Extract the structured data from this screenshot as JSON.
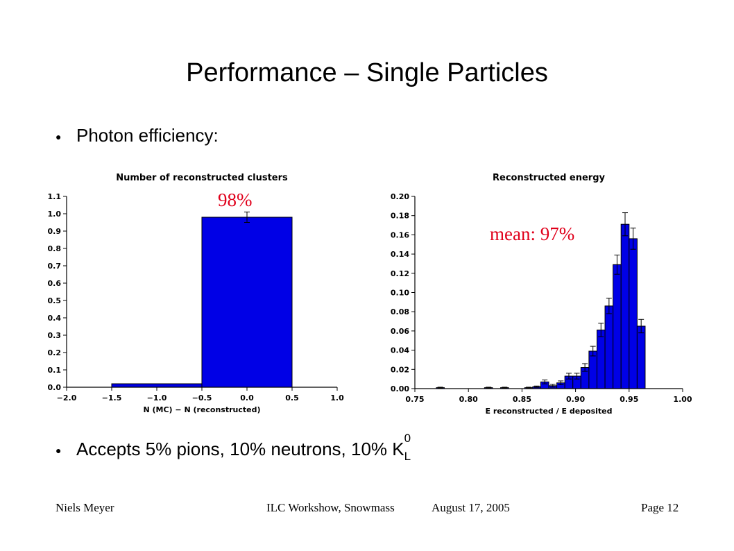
{
  "slide": {
    "title": "Performance – Single Particles",
    "bullet1": "Photon efficiency:",
    "bullet2_text": "Accepts 5% pions, 10% neutrons, 10% K",
    "bullet2_sup": "0",
    "bullet2_sub": "L",
    "annotation_left": "98%",
    "annotation_right": "mean: 97%"
  },
  "footer": {
    "author": "Niels Meyer",
    "event": "ILC Workshow, Snowmass",
    "date": "August 17, 2005",
    "page": "Page 12"
  },
  "colors": {
    "bar": "#0000e6",
    "annotation": "#e0001b"
  },
  "chart_data": [
    {
      "type": "bar",
      "title": "Number of reconstructed clusters",
      "xlabel": "N (MC) − N (reconstructed)",
      "ylabel": "",
      "xlim": [
        -2.0,
        1.0
      ],
      "ylim": [
        0.0,
        1.1
      ],
      "xticks": [
        "−2.0",
        "−1.5",
        "−1.0",
        "−0.5",
        "0.0",
        "0.5",
        "1.0"
      ],
      "yticks": [
        "0.0",
        "0.1",
        "0.2",
        "0.3",
        "0.4",
        "0.5",
        "0.6",
        "0.7",
        "0.8",
        "0.9",
        "1.0",
        "1.1"
      ],
      "bins": [
        {
          "x0": -1.5,
          "x1": -0.5,
          "value": 0.02,
          "err": 0.0
        },
        {
          "x0": -0.5,
          "x1": 0.5,
          "value": 0.98,
          "err": 0.03
        }
      ],
      "grid": false
    },
    {
      "type": "bar",
      "title": "Reconstructed energy",
      "xlabel": "E reconstructed / E deposited",
      "ylabel": "",
      "xlim": [
        0.75,
        1.0
      ],
      "ylim": [
        0.0,
        0.2
      ],
      "xticks": [
        "0.75",
        "0.80",
        "0.85",
        "0.90",
        "0.95",
        "1.00"
      ],
      "yticks": [
        "0.00",
        "0.02",
        "0.04",
        "0.06",
        "0.08",
        "0.10",
        "0.12",
        "0.14",
        "0.16",
        "0.18",
        "0.20"
      ],
      "bin_width": 0.0075,
      "bins": [
        {
          "x0": 0.77,
          "value": 0.001,
          "err": 0.0005
        },
        {
          "x0": 0.815,
          "value": 0.001,
          "err": 0.0005
        },
        {
          "x0": 0.83,
          "value": 0.001,
          "err": 0.0005
        },
        {
          "x0": 0.8525,
          "value": 0.001,
          "err": 0.0005
        },
        {
          "x0": 0.86,
          "value": 0.002,
          "err": 0.0007
        },
        {
          "x0": 0.8675,
          "value": 0.007,
          "err": 0.002
        },
        {
          "x0": 0.875,
          "value": 0.003,
          "err": 0.0015
        },
        {
          "x0": 0.8825,
          "value": 0.006,
          "err": 0.002
        },
        {
          "x0": 0.89,
          "value": 0.013,
          "err": 0.003
        },
        {
          "x0": 0.8975,
          "value": 0.013,
          "err": 0.003
        },
        {
          "x0": 0.905,
          "value": 0.022,
          "err": 0.004
        },
        {
          "x0": 0.9125,
          "value": 0.039,
          "err": 0.005
        },
        {
          "x0": 0.92,
          "value": 0.061,
          "err": 0.007
        },
        {
          "x0": 0.9275,
          "value": 0.086,
          "err": 0.008
        },
        {
          "x0": 0.935,
          "value": 0.129,
          "err": 0.01
        },
        {
          "x0": 0.9425,
          "value": 0.171,
          "err": 0.012
        },
        {
          "x0": 0.95,
          "value": 0.156,
          "err": 0.011
        },
        {
          "x0": 0.9575,
          "value": 0.065,
          "err": 0.007
        }
      ],
      "grid": false
    }
  ]
}
